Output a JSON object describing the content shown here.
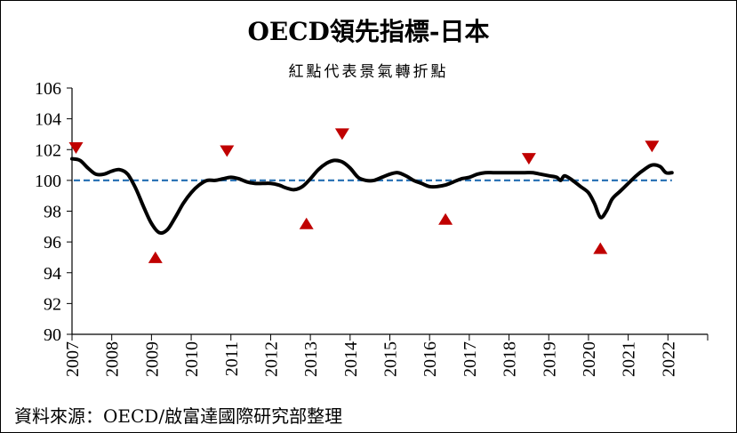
{
  "chart_data": {
    "type": "line",
    "title": "OECD領先指標-日本",
    "subtitle": "紅點代表景氣轉折點",
    "xlabel": "",
    "ylabel": "",
    "ylim": [
      90,
      106
    ],
    "xlim": [
      2007,
      2023
    ],
    "y_ticks": [
      "90",
      "92",
      "94",
      "96",
      "98",
      "100",
      "102",
      "104",
      "106"
    ],
    "x_ticks": [
      "2007",
      "2008",
      "2009",
      "2010",
      "2011",
      "2012",
      "2013",
      "2014",
      "2015",
      "2016",
      "2017",
      "2018",
      "2019",
      "2020",
      "2021",
      "2022"
    ],
    "grid": false,
    "legend": "none",
    "reference_line": {
      "y": 100,
      "color": "#2e75b6",
      "style": "dashed"
    },
    "series": [
      {
        "color": "#000000",
        "points": [
          [
            2007.0,
            101.4
          ],
          [
            2007.2,
            101.3
          ],
          [
            2007.4,
            100.8
          ],
          [
            2007.6,
            100.4
          ],
          [
            2007.8,
            100.4
          ],
          [
            2008.0,
            100.6
          ],
          [
            2008.2,
            100.7
          ],
          [
            2008.4,
            100.4
          ],
          [
            2008.6,
            99.5
          ],
          [
            2008.8,
            98.3
          ],
          [
            2009.0,
            97.2
          ],
          [
            2009.2,
            96.6
          ],
          [
            2009.4,
            96.8
          ],
          [
            2009.6,
            97.6
          ],
          [
            2009.8,
            98.5
          ],
          [
            2010.0,
            99.2
          ],
          [
            2010.2,
            99.7
          ],
          [
            2010.4,
            100.0
          ],
          [
            2010.6,
            100.0
          ],
          [
            2010.8,
            100.1
          ],
          [
            2011.0,
            100.2
          ],
          [
            2011.2,
            100.1
          ],
          [
            2011.4,
            99.9
          ],
          [
            2011.6,
            99.8
          ],
          [
            2011.8,
            99.8
          ],
          [
            2012.0,
            99.8
          ],
          [
            2012.2,
            99.7
          ],
          [
            2012.4,
            99.5
          ],
          [
            2012.6,
            99.4
          ],
          [
            2012.8,
            99.6
          ],
          [
            2013.0,
            100.1
          ],
          [
            2013.2,
            100.7
          ],
          [
            2013.4,
            101.1
          ],
          [
            2013.6,
            101.3
          ],
          [
            2013.8,
            101.2
          ],
          [
            2014.0,
            100.8
          ],
          [
            2014.2,
            100.2
          ],
          [
            2014.4,
            100.0
          ],
          [
            2014.6,
            100.0
          ],
          [
            2014.8,
            100.2
          ],
          [
            2015.0,
            100.4
          ],
          [
            2015.2,
            100.5
          ],
          [
            2015.4,
            100.3
          ],
          [
            2015.6,
            100.0
          ],
          [
            2015.8,
            99.8
          ],
          [
            2016.0,
            99.6
          ],
          [
            2016.2,
            99.6
          ],
          [
            2016.4,
            99.7
          ],
          [
            2016.6,
            99.9
          ],
          [
            2016.8,
            100.1
          ],
          [
            2017.0,
            100.2
          ],
          [
            2017.2,
            100.4
          ],
          [
            2017.4,
            100.5
          ],
          [
            2017.6,
            100.5
          ],
          [
            2017.8,
            100.5
          ],
          [
            2018.0,
            100.5
          ],
          [
            2018.2,
            100.5
          ],
          [
            2018.4,
            100.5
          ],
          [
            2018.6,
            100.5
          ],
          [
            2018.8,
            100.4
          ],
          [
            2019.0,
            100.3
          ],
          [
            2019.2,
            100.2
          ],
          [
            2019.3,
            100.0
          ],
          [
            2019.4,
            100.3
          ],
          [
            2019.6,
            100.0
          ],
          [
            2019.8,
            99.6
          ],
          [
            2020.0,
            99.2
          ],
          [
            2020.15,
            98.5
          ],
          [
            2020.3,
            97.6
          ],
          [
            2020.45,
            98.0
          ],
          [
            2020.6,
            98.8
          ],
          [
            2020.8,
            99.3
          ],
          [
            2021.0,
            99.8
          ],
          [
            2021.2,
            100.3
          ],
          [
            2021.4,
            100.7
          ],
          [
            2021.6,
            101.0
          ],
          [
            2021.8,
            100.9
          ],
          [
            2021.95,
            100.5
          ],
          [
            2022.1,
            100.5
          ]
        ]
      }
    ],
    "turning_points": [
      {
        "x": 2007.1,
        "y": 102.1,
        "kind": "down"
      },
      {
        "x": 2009.1,
        "y": 95.0,
        "kind": "up"
      },
      {
        "x": 2010.9,
        "y": 101.9,
        "kind": "down"
      },
      {
        "x": 2012.9,
        "y": 97.2,
        "kind": "up"
      },
      {
        "x": 2013.8,
        "y": 103.0,
        "kind": "down"
      },
      {
        "x": 2016.4,
        "y": 97.5,
        "kind": "up"
      },
      {
        "x": 2018.5,
        "y": 101.4,
        "kind": "down"
      },
      {
        "x": 2020.3,
        "y": 95.6,
        "kind": "up"
      },
      {
        "x": 2021.6,
        "y": 102.2,
        "kind": "down"
      }
    ],
    "marker_color": "#c00000",
    "line_color": "#000000"
  },
  "source_note": "資料來源：OECD/啟富達國際研究部整理"
}
